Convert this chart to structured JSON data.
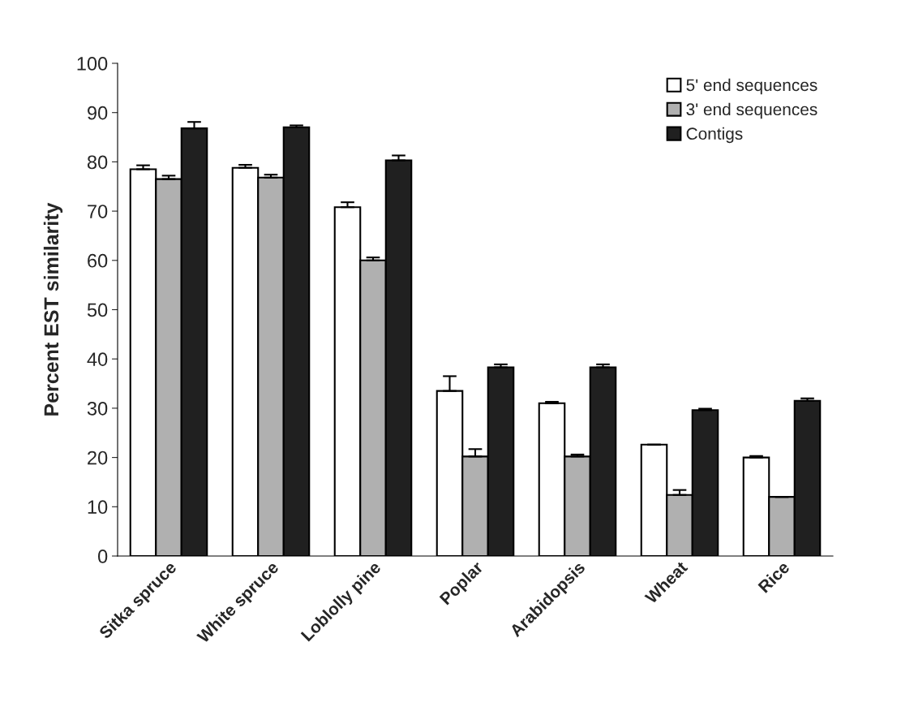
{
  "chart_data": {
    "type": "bar",
    "ylabel": "Percent EST similarity",
    "categories": [
      "Sitka spruce",
      "White spruce",
      "Loblolly pine",
      "Poplar",
      "Arabidopsis",
      "Wheat",
      "Rice"
    ],
    "series": [
      {
        "name": "5' end sequences",
        "color": "#ffffff",
        "values": [
          78.5,
          78.8,
          70.8,
          33.5,
          31,
          22.6,
          20
        ],
        "errors": [
          0.8,
          0.6,
          1,
          3,
          0.3,
          null,
          0.3
        ]
      },
      {
        "name": "3' end sequences",
        "color": "#b0b0b0",
        "values": [
          76.5,
          76.8,
          60,
          20.2,
          20.2,
          12.4,
          12
        ],
        "errors": [
          0.7,
          0.6,
          0.6,
          1.5,
          0.4,
          1,
          null
        ]
      },
      {
        "name": "Contigs",
        "color": "#202020",
        "values": [
          86.8,
          87,
          80.3,
          38.3,
          38.3,
          29.6,
          31.5
        ],
        "errors": [
          1.3,
          0.4,
          1,
          0.6,
          0.6,
          0.3,
          0.5
        ]
      }
    ],
    "ylim": [
      0,
      100
    ],
    "yticks": [
      0,
      10,
      20,
      30,
      40,
      50,
      60,
      70,
      80,
      90,
      100
    ],
    "grid": false,
    "legend": "top right"
  }
}
